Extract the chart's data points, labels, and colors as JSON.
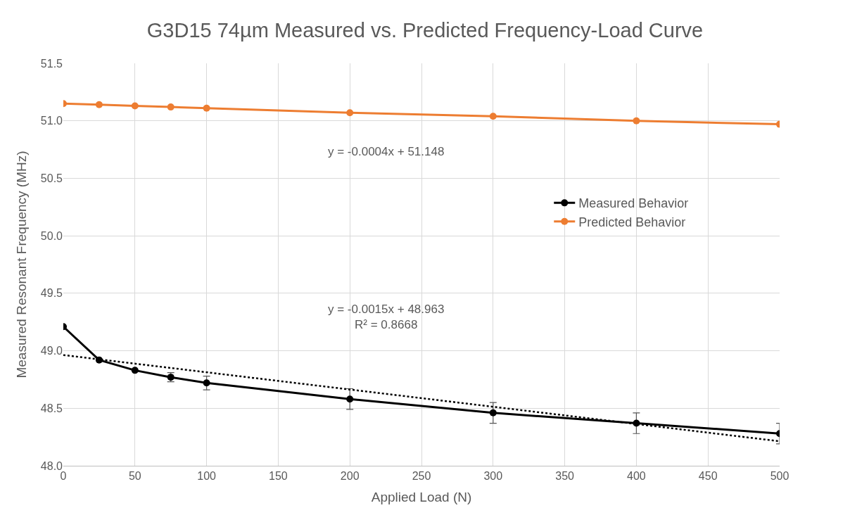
{
  "chart_data": {
    "type": "line",
    "title": "G3D15 74µm Measured vs. Predicted Frequency-Load Curve",
    "xlabel": "Applied Load (N)",
    "ylabel": "Measured Resonant Frequency (MHz)",
    "x": [
      0,
      25,
      50,
      75,
      100,
      200,
      300,
      400,
      500
    ],
    "series": [
      {
        "name": "Measured Behavior",
        "color": "#000000",
        "values": [
          49.21,
          48.92,
          48.83,
          48.77,
          48.72,
          48.58,
          48.46,
          48.37,
          48.28
        ],
        "errors": [
          null,
          null,
          null,
          0.04,
          0.06,
          0.09,
          0.09,
          0.09,
          0.09
        ]
      },
      {
        "name": "Predicted Behavior",
        "color": "#ed7d31",
        "values": [
          51.15,
          51.14,
          51.13,
          51.12,
          51.11,
          51.07,
          51.04,
          51.0,
          50.97
        ]
      },
      {
        "type": "line",
        "x": [
          0,
          500
        ],
        "color": "#000000",
        "values": [
          48.963,
          48.213
        ],
        "line_style": "dotted",
        "marker": "none"
      }
    ],
    "annotations": [
      "y = -0.0004x + 51.148",
      "y = -0.0015x + 48.963\nR² = 0.8668"
    ],
    "xlim": [
      0,
      500
    ],
    "xticks": [
      0,
      50,
      100,
      150,
      200,
      250,
      300,
      350,
      400,
      450,
      500
    ],
    "ylim": [
      48.0,
      51.5
    ],
    "yticks": [
      {
        "value": 48,
        "label": "48.0"
      },
      48.5,
      {
        "value": 49,
        "label": "49.0"
      },
      49.5,
      {
        "value": 50,
        "label": "50.0"
      },
      50.5,
      {
        "value": 51,
        "label": "51.0"
      },
      51.5
    ],
    "grid": true,
    "legend": "right",
    "marker": "circle",
    "line_style": "solid"
  }
}
